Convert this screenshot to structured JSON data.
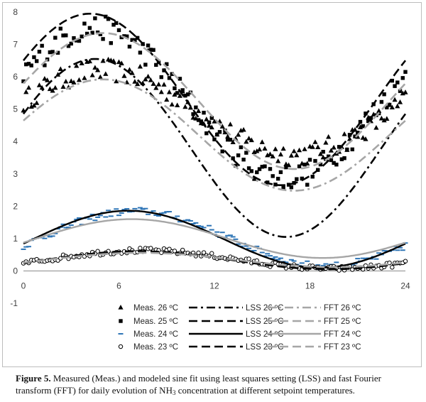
{
  "chart_data": {
    "type": "scatter",
    "x_ticks": [
      "0",
      "6",
      "12",
      "18",
      "24"
    ],
    "y_ticks": [
      "-1",
      "0",
      "1",
      "2",
      "3",
      "4",
      "5",
      "6",
      "7",
      "8"
    ],
    "xlim": [
      0,
      24
    ],
    "ylim": [
      -1,
      8
    ],
    "grid": false,
    "legend_position": "bottom",
    "series": [
      {
        "name": "Meas. 26 ºC",
        "kind": "measured",
        "marker": "triangle",
        "color": "#000000",
        "base": 4.9,
        "amp": 1.3,
        "peak_hour": 5.0,
        "noise": 0.35
      },
      {
        "name": "Meas. 25 ºC",
        "kind": "measured",
        "marker": "square",
        "color": "#000000",
        "base": 5.2,
        "amp": 2.3,
        "peak_hour": 4.5,
        "noise": 0.4
      },
      {
        "name": "Meas. 24 ºC",
        "kind": "measured",
        "marker": "dash",
        "color": "#2e75b6",
        "base": 1.0,
        "amp": 0.85,
        "peak_hour": 7.0,
        "noise": 0.12
      },
      {
        "name": "Meas. 23 ºC",
        "kind": "measured",
        "marker": "circle",
        "color": "#000000",
        "base": 0.35,
        "amp": 0.28,
        "peak_hour": 7.5,
        "noise": 0.08
      },
      {
        "name": "LSS 26 ºC",
        "kind": "fit",
        "style": "dashdot",
        "color": "#000000",
        "width": 2.6,
        "base": 3.8,
        "amp": 2.75,
        "peak_hour": 4.5
      },
      {
        "name": "LSS 25 ºC",
        "kind": "fit",
        "style": "dash",
        "color": "#000000",
        "width": 2.6,
        "base": 5.3,
        "amp": 2.65,
        "peak_hour": 4.2
      },
      {
        "name": "LSS 24 ºC",
        "kind": "fit",
        "style": "solid",
        "color": "#000000",
        "width": 2.4,
        "base": 0.98,
        "amp": 0.88,
        "peak_hour": 6.6
      },
      {
        "name": "LSS 23 ºC",
        "kind": "fit",
        "style": "dash",
        "color": "#000000",
        "width": 2.6,
        "base": 0.33,
        "amp": 0.28,
        "peak_hour": 7.2
      },
      {
        "name": "FFT 26 ºC",
        "kind": "fit",
        "style": "dashdot",
        "color": "#a6a6a6",
        "width": 2.6,
        "base": 4.2,
        "amp": 1.72,
        "peak_hour": 5.0
      },
      {
        "name": "FFT 25 ºC",
        "kind": "fit",
        "style": "dash",
        "color": "#a6a6a6",
        "width": 2.6,
        "base": 5.25,
        "amp": 2.1,
        "peak_hour": 5.0
      },
      {
        "name": "FFT 24 ºC",
        "kind": "fit",
        "style": "solid",
        "color": "#a6a6a6",
        "width": 2.4,
        "base": 1.0,
        "amp": 0.6,
        "peak_hour": 6.8
      },
      {
        "name": "FFT 23 ºC",
        "kind": "fit",
        "style": "dash",
        "color": "#a6a6a6",
        "width": 2.6,
        "base": 0.34,
        "amp": 0.22,
        "peak_hour": 7.4
      }
    ]
  },
  "caption": {
    "label": "Figure 5.",
    "text_before_formula": " Measured (Meas.) and modeled sine fit using least squares setting (LSS) and fast Fourier transform (FFT) for daily evolution of NH",
    "formula_subscript": "3",
    "text_after_formula": " concentration at different setpoint temperatures."
  }
}
